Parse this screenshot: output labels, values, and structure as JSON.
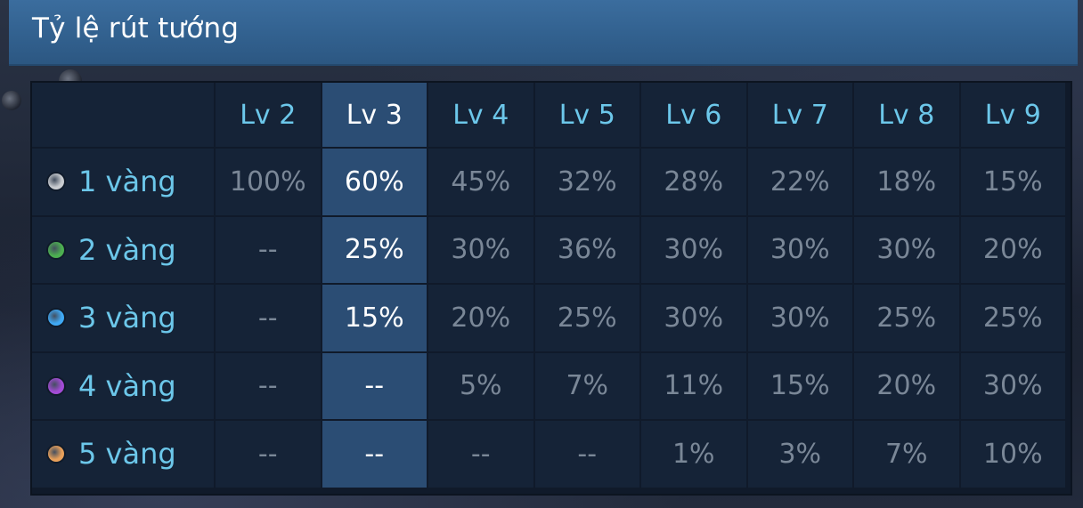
{
  "header": {
    "title": "Tỷ lệ rút tướng"
  },
  "columns": [
    "Lv 2",
    "Lv 3",
    "Lv 4",
    "Lv 5",
    "Lv 6",
    "Lv 7",
    "Lv 8",
    "Lv 9"
  ],
  "active_column_index": 1,
  "rows": [
    {
      "label": "1 vàng",
      "dot_color": "#c9ccd0",
      "values": [
        "100%",
        "60%",
        "45%",
        "32%",
        "28%",
        "22%",
        "18%",
        "15%"
      ]
    },
    {
      "label": "2 vàng",
      "dot_color": "#4caf50",
      "values": [
        "--",
        "25%",
        "30%",
        "36%",
        "30%",
        "30%",
        "30%",
        "20%"
      ]
    },
    {
      "label": "3 vàng",
      "dot_color": "#3fa9f5",
      "values": [
        "--",
        "15%",
        "20%",
        "25%",
        "30%",
        "30%",
        "25%",
        "25%"
      ]
    },
    {
      "label": "4 vàng",
      "dot_color": "#a34bd6",
      "values": [
        "--",
        "--",
        "5%",
        "7%",
        "11%",
        "15%",
        "20%",
        "30%"
      ]
    },
    {
      "label": "5 vàng",
      "dot_color": "#e8a05a",
      "values": [
        "--",
        "--",
        "--",
        "--",
        "1%",
        "3%",
        "7%",
        "10%"
      ]
    }
  ]
}
